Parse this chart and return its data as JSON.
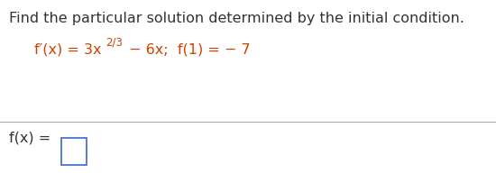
{
  "title": "Find the particular solution determined by the initial condition.",
  "title_color": "#333333",
  "title_fontsize": 11.5,
  "equation_color": "#CC4400",
  "equation_fontsize": 11.5,
  "eq_superscript_fontsize": 8.5,
  "answer_label_color": "#333333",
  "answer_label_fontsize": 11.5,
  "bg_color": "#ffffff",
  "line_color": "#aaaaaa",
  "box_color": "#4477CC",
  "eq_main": "f′(x) = 3x",
  "eq_super": "2/3",
  "eq_rest": " − 6x;  f(1) = − 7",
  "answer_label": "f(x) = "
}
